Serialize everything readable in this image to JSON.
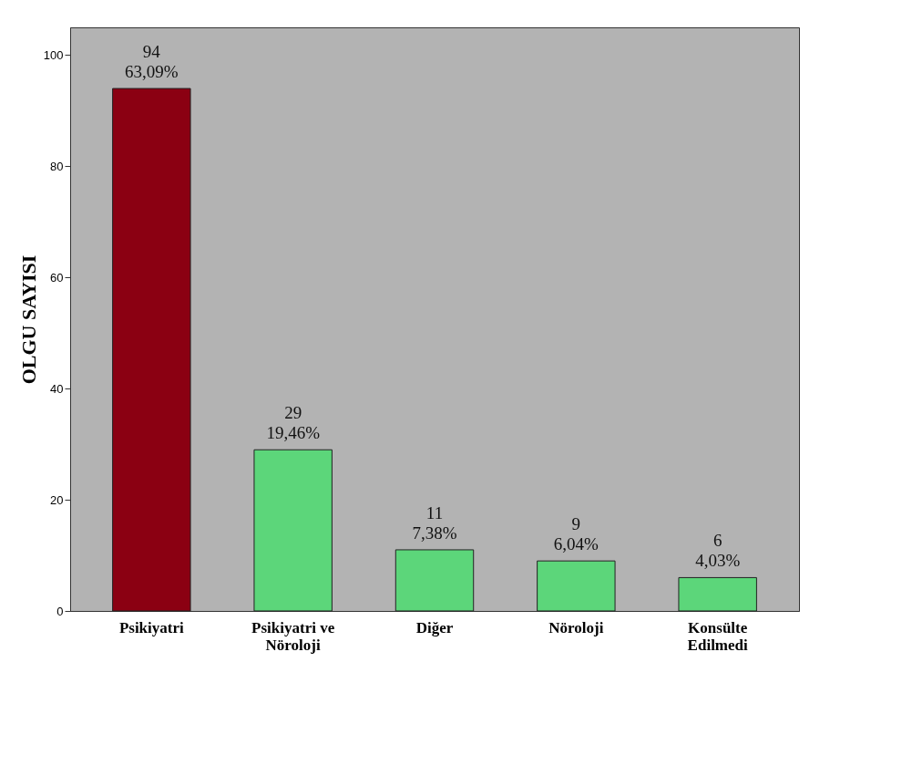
{
  "chart_data": {
    "type": "bar",
    "ylabel": "OLGU SAYISI",
    "categories": [
      "Psikiyatri",
      "Psikiyatri ve Nöroloji",
      "Diğer",
      "Nöroloji",
      "Konsülte Edilmedi"
    ],
    "values": [
      94,
      29,
      11,
      9,
      6
    ],
    "colors": [
      "#8b0012",
      "#5cd67a",
      "#5cd67a",
      "#5cd67a",
      "#5cd67a"
    ],
    "value_labels": [
      "94 63,09%",
      "29 19,46%",
      "11 7,38%",
      "9 6,04%",
      "6 4,03%"
    ],
    "ylim": [
      0,
      105
    ],
    "yticks": [
      0,
      20,
      40,
      60,
      80,
      100
    ]
  }
}
